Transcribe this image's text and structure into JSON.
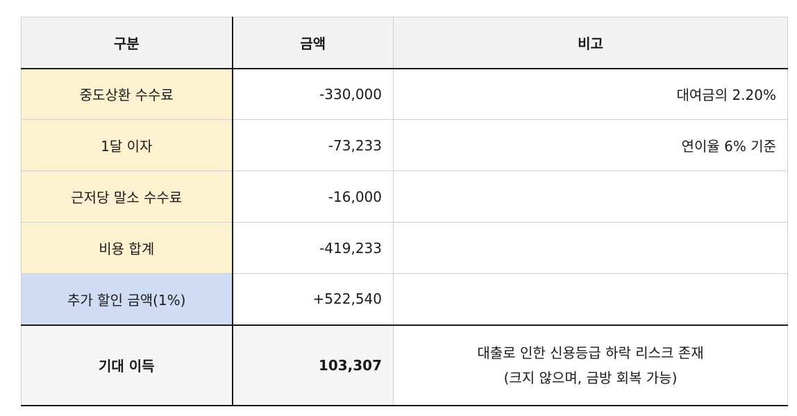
{
  "headers": [
    "구분",
    "금액",
    "비고"
  ],
  "rows": [
    {
      "label": "중도상환 수수료",
      "amount": "-330,000",
      "note": "대여금의 2.20%"
    },
    {
      "label": "1달 이자",
      "amount": "-73,233",
      "note": "연이율 6% 기준"
    },
    {
      "label": "근저당 말소 수수료",
      "amount": "-16,000",
      "note": ""
    },
    {
      "label": "비용 합계",
      "amount": "-419,233",
      "note": ""
    },
    {
      "label": "추가 할인 금액(1%)",
      "amount": "+522,540",
      "note": ""
    }
  ],
  "total": {
    "label": "기대 이득",
    "amount": "103,307",
    "note_line1": "대출로 인한 신용등급 하락 리스크 존재",
    "note_line2": "(크지 않으며, 금방 회복 가능)"
  },
  "colors": {
    "header_bg": "#f2f2f2",
    "label_bg": "#fdf2cf",
    "discount_bg": "#cfdcf3",
    "total_bg": "#f5f5f5"
  }
}
